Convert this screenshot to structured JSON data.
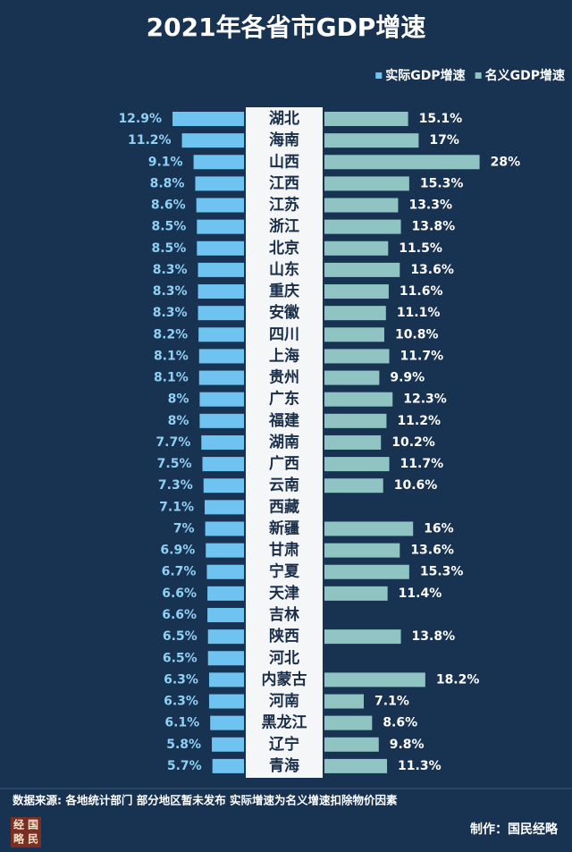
{
  "chart_data": {
    "type": "butterfly",
    "title": "2021年各省市GDP增速",
    "categories": [
      "湖北",
      "海南",
      "山西",
      "江西",
      "江苏",
      "浙江",
      "北京",
      "山东",
      "重庆",
      "安徽",
      "四川",
      "上海",
      "贵州",
      "广东",
      "福建",
      "湖南",
      "广西",
      "云南",
      "西藏",
      "新疆",
      "甘肃",
      "宁夏",
      "天津",
      "吉林",
      "陕西",
      "河北",
      "内蒙古",
      "河南",
      "黑龙江",
      "辽宁",
      "青海"
    ],
    "series": [
      {
        "name": "实际GDP增速",
        "color": "#6fc3f0",
        "values": [
          12.9,
          11.2,
          9.1,
          8.8,
          8.6,
          8.5,
          8.5,
          8.3,
          8.3,
          8.3,
          8.2,
          8.1,
          8.1,
          8,
          8,
          7.7,
          7.5,
          7.3,
          7.1,
          7,
          6.9,
          6.7,
          6.6,
          6.6,
          6.5,
          6.5,
          6.3,
          6.3,
          6.1,
          5.8,
          5.7
        ],
        "value_labels": [
          "12.9%",
          "11.2%",
          "9.1%",
          "8.8%",
          "8.6%",
          "8.5%",
          "8.5%",
          "8.3%",
          "8.3%",
          "8.3%",
          "8.2%",
          "8.1%",
          "8.1%",
          "8%",
          "8%",
          "7.7%",
          "7.5%",
          "7.3%",
          "7.1%",
          "7%",
          "6.9%",
          "6.7%",
          "6.6%",
          "6.6%",
          "6.5%",
          "6.5%",
          "6.3%",
          "6.3%",
          "6.1%",
          "5.8%",
          "5.7%"
        ]
      },
      {
        "name": "名义GDP增速",
        "color": "#8fc4c2",
        "values": [
          15.1,
          17,
          28,
          15.3,
          13.3,
          13.8,
          11.5,
          13.6,
          11.6,
          11.1,
          10.8,
          11.7,
          9.9,
          12.3,
          11.2,
          10.2,
          11.7,
          10.6,
          null,
          16,
          13.6,
          15.3,
          11.4,
          null,
          13.8,
          null,
          18.2,
          7.1,
          8.6,
          9.8,
          11.3
        ],
        "value_labels": [
          "15.1%",
          "17%",
          "28%",
          "15.3%",
          "13.3%",
          "13.8%",
          "11.5%",
          "13.6%",
          "11.6%",
          "11.1%",
          "10.8%",
          "11.7%",
          "9.9%",
          "12.3%",
          "11.2%",
          "10.2%",
          "11.7%",
          "10.6%",
          null,
          "16%",
          "13.6%",
          "15.3%",
          "11.4%",
          null,
          "13.8%",
          null,
          "18.2%",
          "7.1%",
          "8.6%",
          "9.8%",
          "11.3%"
        ]
      }
    ],
    "source": "数据来源: 各地统计部门 部分地区暂未发布  实际增速为名义增速扣除物价因素",
    "credit": "制作：国民经略",
    "logo": [
      "经",
      "国",
      "略",
      "民"
    ]
  }
}
